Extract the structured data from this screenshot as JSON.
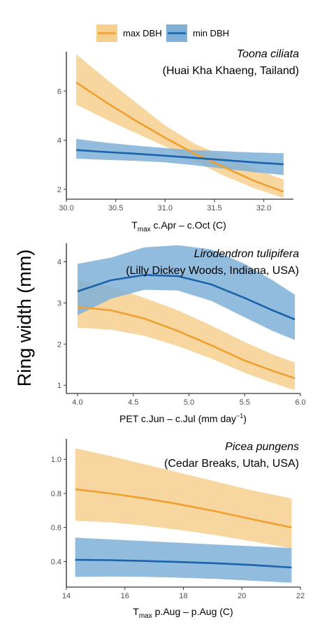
{
  "y_axis_label": "Ring width (mm)",
  "legend": [
    {
      "label": "max DBH",
      "color": "#f0a030",
      "band": "#f6cf8e"
    },
    {
      "label": "min DBH",
      "color": "#1a62aa",
      "band": "#7fb0d8"
    }
  ],
  "chart_data": [
    {
      "type": "line",
      "title": "Toona ciliata",
      "subtitle": "(Huai Kha Khaeng, Tailand)",
      "xlabel_main": "T",
      "xlabel_sub": "max",
      "xlabel_rest": " c.Apr – c.Oct (C)",
      "xlim": [
        30.0,
        32.3
      ],
      "ylim": [
        1.6,
        7.6
      ],
      "xticks": [
        30.0,
        30.5,
        31.0,
        31.5,
        32.0
      ],
      "xtick_labels": [
        "30.0",
        "30.5",
        "31.0",
        "31.5",
        "32.0"
      ],
      "yticks": [
        2,
        4,
        6
      ],
      "ytick_labels": [
        "2",
        "4",
        "6"
      ],
      "series": [
        {
          "name": "max DBH",
          "x": [
            30.1,
            30.4,
            30.7,
            31.0,
            31.3,
            31.6,
            31.9,
            32.2
          ],
          "y": [
            6.35,
            5.55,
            4.8,
            4.1,
            3.45,
            2.9,
            2.35,
            1.9
          ],
          "lower": [
            5.45,
            4.85,
            4.3,
            3.75,
            3.15,
            2.55,
            2.05,
            1.65
          ],
          "upper": [
            7.5,
            6.5,
            5.55,
            4.6,
            3.85,
            3.35,
            2.85,
            2.4
          ]
        },
        {
          "name": "min DBH",
          "x": [
            30.1,
            30.4,
            30.7,
            31.0,
            31.3,
            31.6,
            31.9,
            32.2
          ],
          "y": [
            3.6,
            3.52,
            3.45,
            3.37,
            3.28,
            3.19,
            3.1,
            3.02
          ],
          "lower": [
            3.25,
            3.2,
            3.16,
            3.1,
            2.98,
            2.84,
            2.7,
            2.58
          ],
          "upper": [
            4.05,
            3.9,
            3.78,
            3.68,
            3.6,
            3.55,
            3.5,
            3.47
          ]
        }
      ]
    },
    {
      "type": "line",
      "title": "Lirodendron tulipifera",
      "subtitle": "(Lilly Dickey Woods, Indiana, USA)",
      "xlabel_main": "PET c.Jun – c.Jul (mm day",
      "xlabel_sup": "−1",
      "xlabel_rest": ")",
      "xlim": [
        3.9,
        6.0
      ],
      "ylim": [
        0.8,
        4.45
      ],
      "xticks": [
        4.0,
        4.5,
        5.0,
        5.5,
        6.0
      ],
      "xtick_labels": [
        "4.0",
        "4.5",
        "5.0",
        "5.5",
        "6.0"
      ],
      "yticks": [
        1,
        2,
        3,
        4
      ],
      "ytick_labels": [
        "1",
        "2",
        "3",
        "4"
      ],
      "series": [
        {
          "name": "max DBH",
          "x": [
            4.0,
            4.3,
            4.6,
            4.9,
            5.2,
            5.5,
            5.75,
            5.95
          ],
          "y": [
            2.9,
            2.82,
            2.62,
            2.32,
            1.97,
            1.6,
            1.35,
            1.17
          ],
          "lower": [
            2.4,
            2.35,
            2.2,
            1.95,
            1.65,
            1.3,
            1.06,
            0.88
          ],
          "upper": [
            3.55,
            3.4,
            3.12,
            2.82,
            2.45,
            2.05,
            1.75,
            1.55
          ]
        },
        {
          "name": "min DBH",
          "x": [
            4.0,
            4.3,
            4.6,
            4.9,
            5.2,
            5.5,
            5.75,
            5.95
          ],
          "y": [
            3.28,
            3.55,
            3.68,
            3.65,
            3.45,
            3.12,
            2.82,
            2.6
          ],
          "lower": [
            2.7,
            3.1,
            3.32,
            3.3,
            3.05,
            2.65,
            2.32,
            2.1
          ],
          "upper": [
            3.95,
            4.1,
            4.35,
            4.4,
            4.3,
            3.95,
            3.55,
            3.2
          ]
        }
      ]
    },
    {
      "type": "line",
      "title": "Picea pungens",
      "subtitle": "(Cedar Breaks, Utah, USA)",
      "xlabel_main": "T",
      "xlabel_sub": "max",
      "xlabel_rest": " p.Aug – p.Aug (C)",
      "xlim": [
        14.0,
        22.0
      ],
      "ylim": [
        0.25,
        1.12
      ],
      "xticks": [
        14,
        16,
        18,
        20,
        22
      ],
      "xtick_labels": [
        "14",
        "16",
        "18",
        "20",
        "22"
      ],
      "yticks": [
        0.4,
        0.6,
        0.8,
        1.0
      ],
      "ytick_labels": [
        "0.4",
        "0.6",
        "0.8",
        "1.0"
      ],
      "series": [
        {
          "name": "max DBH",
          "x": [
            14.3,
            15.5,
            16.7,
            17.9,
            19.1,
            20.3,
            21.7
          ],
          "y": [
            0.825,
            0.8,
            0.77,
            0.735,
            0.695,
            0.65,
            0.6
          ],
          "lower": [
            0.64,
            0.63,
            0.61,
            0.585,
            0.555,
            0.52,
            0.478
          ],
          "upper": [
            1.065,
            1.02,
            0.97,
            0.92,
            0.87,
            0.82,
            0.77
          ]
        },
        {
          "name": "min DBH",
          "x": [
            14.3,
            15.5,
            16.7,
            17.9,
            19.1,
            20.3,
            21.7
          ],
          "y": [
            0.41,
            0.408,
            0.403,
            0.397,
            0.39,
            0.38,
            0.365
          ],
          "lower": [
            0.31,
            0.312,
            0.31,
            0.305,
            0.298,
            0.288,
            0.275
          ],
          "upper": [
            0.54,
            0.53,
            0.52,
            0.51,
            0.5,
            0.49,
            0.48
          ]
        }
      ]
    }
  ]
}
